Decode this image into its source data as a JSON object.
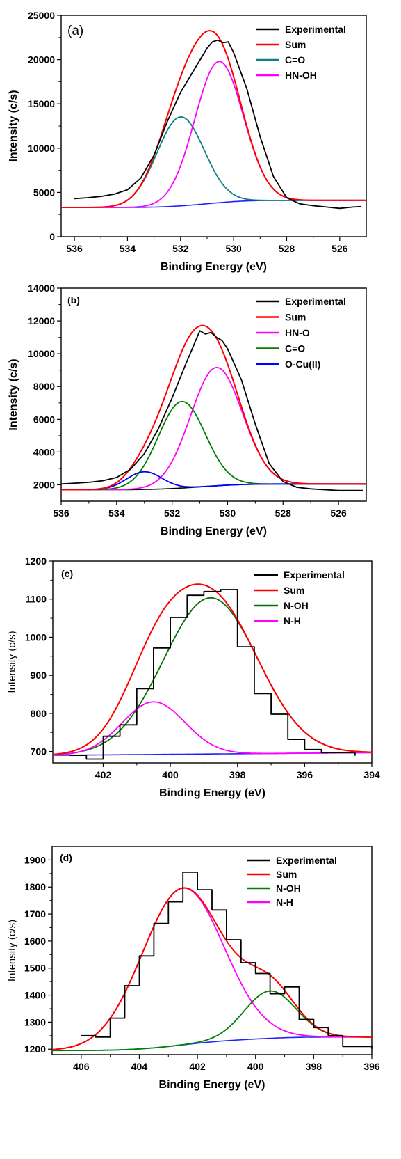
{
  "chart_data": [
    {
      "panel_label": "(a)",
      "type": "line",
      "xlabel": "Binding Energy (eV)",
      "ylabel": "Intensity (c/s)",
      "xlim": [
        536.5,
        525
      ],
      "ylim": [
        0,
        25000
      ],
      "xticks": [
        536,
        534,
        532,
        530,
        528,
        526
      ],
      "yticks": [
        0,
        5000,
        10000,
        15000,
        20000,
        25000
      ],
      "ytick_labels": [
        "0",
        "5000",
        "10000",
        "15000",
        "20000",
        "25000"
      ],
      "legend": "top-right",
      "background": {
        "type": "shirley",
        "start": 4100,
        "end": 3300
      },
      "peaks": [
        {
          "name": "C=O",
          "center": 532.0,
          "fwhm": 2.1,
          "height": 10050
        },
        {
          "name": "HN-OH",
          "center": 530.55,
          "fwhm": 2.15,
          "height": 15950
        }
      ],
      "series": [
        {
          "name": "Experimental",
          "color": "#000000",
          "kind": "experimental_line",
          "x": [
            536,
            535.5,
            535,
            534.5,
            534,
            533.5,
            533,
            532.5,
            532,
            531.5,
            531,
            530.8,
            530.6,
            530.4,
            530.2,
            530,
            529.5,
            529,
            528.5,
            528,
            527.5,
            527,
            526.5,
            526,
            525.5,
            525.2
          ],
          "y": [
            4300,
            4400,
            4550,
            4800,
            5300,
            6600,
            9200,
            13000,
            16300,
            18800,
            21300,
            22000,
            22200,
            21900,
            22000,
            20800,
            16700,
            11300,
            6800,
            4400,
            3700,
            3500,
            3350,
            3200,
            3350,
            3400
          ]
        },
        {
          "name": "Sum",
          "color": "#ff0000",
          "kind": "sum"
        },
        {
          "name": "C=O",
          "color": "#0f7f7f",
          "kind": "peak",
          "peak": 0
        },
        {
          "name": "HN-OH",
          "color": "#ff00ff",
          "kind": "peak",
          "peak": 1
        },
        {
          "name": "",
          "color": "#2020ff",
          "kind": "background"
        }
      ]
    },
    {
      "panel_label": "(b)",
      "type": "line",
      "xlabel": "Binding Energy (eV)",
      "ylabel": "Intensity (c/s)",
      "xlim": [
        536,
        525
      ],
      "ylim": [
        1000,
        14000
      ],
      "xticks": [
        536,
        534,
        532,
        530,
        528,
        526
      ],
      "yticks": [
        2000,
        4000,
        6000,
        8000,
        10000,
        12000,
        14000
      ],
      "ytick_labels": [
        "2000",
        "4000",
        "6000",
        "8000",
        "10000",
        "12000",
        "14000"
      ],
      "legend": "top-right",
      "background": {
        "type": "shirley",
        "start": 2050,
        "end": 1700
      },
      "peaks": [
        {
          "name": "HN-O",
          "center": 530.4,
          "fwhm": 2.2,
          "height": 7220
        },
        {
          "name": "C=O",
          "center": 531.65,
          "fwhm": 2.0,
          "height": 5280
        },
        {
          "name": "O-Cu(II)",
          "center": 533.0,
          "fwhm": 1.5,
          "height": 1080
        }
      ],
      "series": [
        {
          "name": "Experimental",
          "color": "#000000",
          "kind": "experimental_line",
          "x": [
            536,
            535.5,
            535,
            534.5,
            534,
            533.5,
            533,
            532.5,
            532,
            531.5,
            531.2,
            531.0,
            530.8,
            530.6,
            530.4,
            530.2,
            530,
            529.5,
            529,
            528.5,
            528,
            527.5,
            527,
            526.5,
            526,
            525.5,
            525.1
          ],
          "y": [
            2050,
            2100,
            2150,
            2250,
            2450,
            2950,
            3900,
            5400,
            7300,
            9400,
            10600,
            11400,
            11200,
            11300,
            11000,
            10800,
            10300,
            8400,
            5700,
            3300,
            2200,
            1850,
            1750,
            1700,
            1650,
            1650,
            1650
          ]
        },
        {
          "name": "Sum",
          "color": "#ff0000",
          "kind": "sum"
        },
        {
          "name": "HN-O",
          "color": "#ff00ff",
          "kind": "peak",
          "peak": 0
        },
        {
          "name": "C=O",
          "color": "#008000",
          "kind": "peak",
          "peak": 1
        },
        {
          "name": "O-Cu(II)",
          "color": "#0000ff",
          "kind": "peak",
          "peak": 2
        },
        {
          "name": "",
          "color": "#000000",
          "kind": "background"
        }
      ]
    },
    {
      "panel_label": "(c)",
      "type": "line",
      "xlabel": "Binding Energy (eV)",
      "ylabel": "Intensity (c/s)",
      "xlim": [
        403.5,
        394
      ],
      "ylim": [
        670,
        1200
      ],
      "xticks": [
        402,
        400,
        398,
        396,
        394
      ],
      "yticks": [
        700,
        800,
        900,
        1000,
        1100,
        1200
      ],
      "ytick_labels": [
        "700",
        "800",
        "900",
        "1000",
        "1100",
        "1200"
      ],
      "legend": "top-right",
      "background": {
        "type": "linear",
        "start": 690,
        "end": 697
      },
      "peaks": [
        {
          "name": "N-OH",
          "center": 398.8,
          "fwhm": 3.3,
          "height": 410
        },
        {
          "name": "N-H",
          "center": 400.5,
          "fwhm": 2.2,
          "height": 138
        }
      ],
      "series": [
        {
          "name": "Experimental",
          "color": "#000000",
          "kind": "histogram",
          "x": [
            403,
            402.5,
            402,
            401.5,
            401,
            400.5,
            400,
            399.5,
            399,
            398.5,
            398,
            397.5,
            397,
            396.5,
            396,
            395.5,
            395
          ],
          "y": [
            690,
            680,
            740,
            770,
            865,
            972,
            1052,
            1110,
            1120,
            1125,
            975,
            852,
            798,
            732,
            705,
            697,
            697
          ]
        },
        {
          "name": "Sum",
          "color": "#ff0000",
          "kind": "sum"
        },
        {
          "name": "N-OH",
          "color": "#007000",
          "kind": "peak",
          "peak": 0
        },
        {
          "name": "N-H",
          "color": "#ff00ff",
          "kind": "peak",
          "peak": 1
        },
        {
          "name": "",
          "color": "#2020ff",
          "kind": "background"
        }
      ]
    },
    {
      "panel_label": "(d)",
      "type": "line",
      "xlabel": "Binding Energy (eV)",
      "ylabel": "Intensity (c/s)",
      "xlim": [
        407,
        396
      ],
      "ylim": [
        1180,
        1950
      ],
      "xticks": [
        406,
        404,
        402,
        400,
        398,
        396
      ],
      "yticks": [
        1200,
        1300,
        1400,
        1500,
        1600,
        1700,
        1800,
        1900
      ],
      "ytick_labels": [
        "1200",
        "1300",
        "1400",
        "1500",
        "1600",
        "1700",
        "1800",
        "1900"
      ],
      "legend": "top-right",
      "background": {
        "type": "shirley",
        "start": 1245,
        "end": 1195
      },
      "peaks": [
        {
          "name": "N-H",
          "center": 402.5,
          "fwhm": 3.3,
          "height": 580
        },
        {
          "name": "N-OH",
          "center": 399.5,
          "fwhm": 2.1,
          "height": 175
        }
      ],
      "series": [
        {
          "name": "Experimental",
          "color": "#000000",
          "kind": "histogram",
          "x": [
            406,
            405.5,
            405,
            404.5,
            404,
            403.5,
            403,
            402.5,
            402,
            401.5,
            401,
            400.5,
            400,
            399.5,
            399,
            398.5,
            398,
            397.5,
            397,
            396.5
          ],
          "y": [
            1250,
            1245,
            1315,
            1435,
            1545,
            1665,
            1745,
            1855,
            1790,
            1715,
            1605,
            1520,
            1480,
            1405,
            1430,
            1310,
            1280,
            1250,
            1210,
            1210
          ]
        },
        {
          "name": "Sum",
          "color": "#ff0000",
          "kind": "sum"
        },
        {
          "name": "N-OH",
          "color": "#008000",
          "kind": "peak",
          "peak": 1
        },
        {
          "name": "N-H",
          "color": "#ff00ff",
          "kind": "peak",
          "peak": 0
        },
        {
          "name": "",
          "color": "#2020ff",
          "kind": "background"
        }
      ]
    }
  ]
}
